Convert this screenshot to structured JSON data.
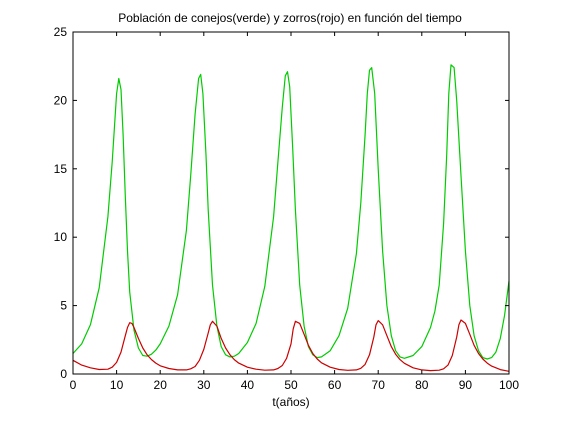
{
  "chart_data": {
    "type": "line",
    "title": "Población de conejos(verde) y zorros(rojo) en función del tiempo",
    "xlabel": "t(años)",
    "ylabel": "",
    "xlim": [
      0,
      100
    ],
    "ylim": [
      0,
      25
    ],
    "xticks": [
      0,
      10,
      20,
      30,
      40,
      50,
      60,
      70,
      80,
      90,
      100
    ],
    "yticks": [
      0,
      5,
      10,
      15,
      20,
      25
    ],
    "grid": false,
    "legend": "none",
    "series": [
      {
        "color": "#00cc00",
        "x": [
          0,
          2,
          4,
          6,
          8,
          9,
          10,
          10.5,
          11,
          11.5,
          12,
          12.5,
          13,
          14,
          15,
          16,
          17,
          18,
          19,
          20,
          22,
          24,
          26,
          27,
          28,
          28.8,
          29.3,
          29.8,
          30.5,
          31,
          32,
          33,
          34,
          35,
          36,
          37,
          38,
          40,
          42,
          44,
          46,
          47,
          48,
          48.7,
          49.2,
          49.7,
          50.4,
          51,
          52,
          53,
          54,
          55,
          56,
          57,
          59,
          61,
          63,
          65,
          66,
          67,
          67.5,
          68,
          68.5,
          69.2,
          70,
          71,
          72,
          73,
          74,
          75,
          76,
          78,
          80,
          82,
          83,
          84,
          85,
          85.7,
          86.2,
          86.7,
          87.4,
          88,
          89,
          90,
          91,
          92,
          93,
          94,
          95,
          96,
          97,
          98,
          99,
          100
        ],
        "y": [
          1.5,
          2.2,
          3.6,
          6.3,
          11.5,
          15.5,
          20.5,
          21.6,
          20.8,
          17.5,
          13.0,
          9.0,
          6.0,
          3.2,
          1.9,
          1.35,
          1.3,
          1.45,
          1.75,
          2.2,
          3.5,
          5.8,
          10.5,
          14.5,
          19.0,
          21.6,
          21.9,
          20.5,
          16.0,
          12.0,
          6.5,
          3.5,
          2.0,
          1.4,
          1.25,
          1.3,
          1.5,
          2.3,
          3.7,
          6.4,
          11.5,
          15.5,
          19.5,
          21.8,
          22.1,
          21.0,
          16.5,
          12.0,
          6.5,
          3.5,
          2.0,
          1.4,
          1.2,
          1.25,
          1.7,
          2.8,
          4.8,
          8.8,
          12.5,
          17.5,
          20.5,
          22.2,
          22.4,
          20.5,
          15.0,
          9.0,
          5.0,
          2.8,
          1.7,
          1.25,
          1.15,
          1.35,
          2.0,
          3.4,
          4.6,
          6.5,
          11.0,
          16.0,
          20.5,
          22.6,
          22.4,
          20.0,
          14.5,
          9.0,
          5.0,
          2.8,
          1.7,
          1.2,
          1.1,
          1.2,
          1.6,
          2.6,
          4.3,
          6.8
        ]
      },
      {
        "color": "#cc0000",
        "x": [
          0,
          2,
          4,
          6,
          8,
          9,
          10,
          11,
          12,
          12.5,
          13,
          13.5,
          14,
          15,
          16,
          17,
          18,
          19,
          20,
          22,
          24,
          26,
          27,
          28,
          29,
          30,
          31,
          31.5,
          32,
          33,
          34,
          35,
          36,
          37,
          38,
          40,
          42,
          44,
          46,
          47,
          48,
          49,
          50,
          50.5,
          51,
          52,
          53,
          54,
          55,
          56,
          57,
          59,
          61,
          63,
          65,
          66,
          67,
          68,
          69,
          69.5,
          70,
          71,
          72,
          73,
          74,
          75,
          76,
          78,
          80,
          82,
          84,
          85,
          86,
          87,
          88,
          88.5,
          89,
          90,
          91,
          92,
          93,
          94,
          95,
          96,
          98,
          100
        ],
        "y": [
          1.0,
          0.65,
          0.45,
          0.33,
          0.35,
          0.5,
          0.85,
          1.6,
          2.8,
          3.4,
          3.75,
          3.7,
          3.4,
          2.6,
          1.9,
          1.4,
          1.05,
          0.8,
          0.6,
          0.4,
          0.3,
          0.3,
          0.38,
          0.55,
          1.0,
          1.8,
          3.0,
          3.6,
          3.85,
          3.5,
          2.6,
          1.9,
          1.4,
          1.05,
          0.8,
          0.5,
          0.35,
          0.28,
          0.3,
          0.4,
          0.62,
          1.15,
          2.2,
          3.3,
          3.85,
          3.7,
          2.9,
          2.1,
          1.5,
          1.1,
          0.82,
          0.5,
          0.33,
          0.27,
          0.3,
          0.42,
          0.7,
          1.4,
          2.7,
          3.6,
          3.9,
          3.6,
          2.8,
          2.0,
          1.45,
          1.05,
          0.78,
          0.45,
          0.3,
          0.25,
          0.28,
          0.38,
          0.65,
          1.35,
          2.7,
          3.6,
          3.95,
          3.7,
          2.9,
          2.1,
          1.5,
          1.1,
          0.8,
          0.58,
          0.32,
          0.2
        ]
      }
    ]
  }
}
